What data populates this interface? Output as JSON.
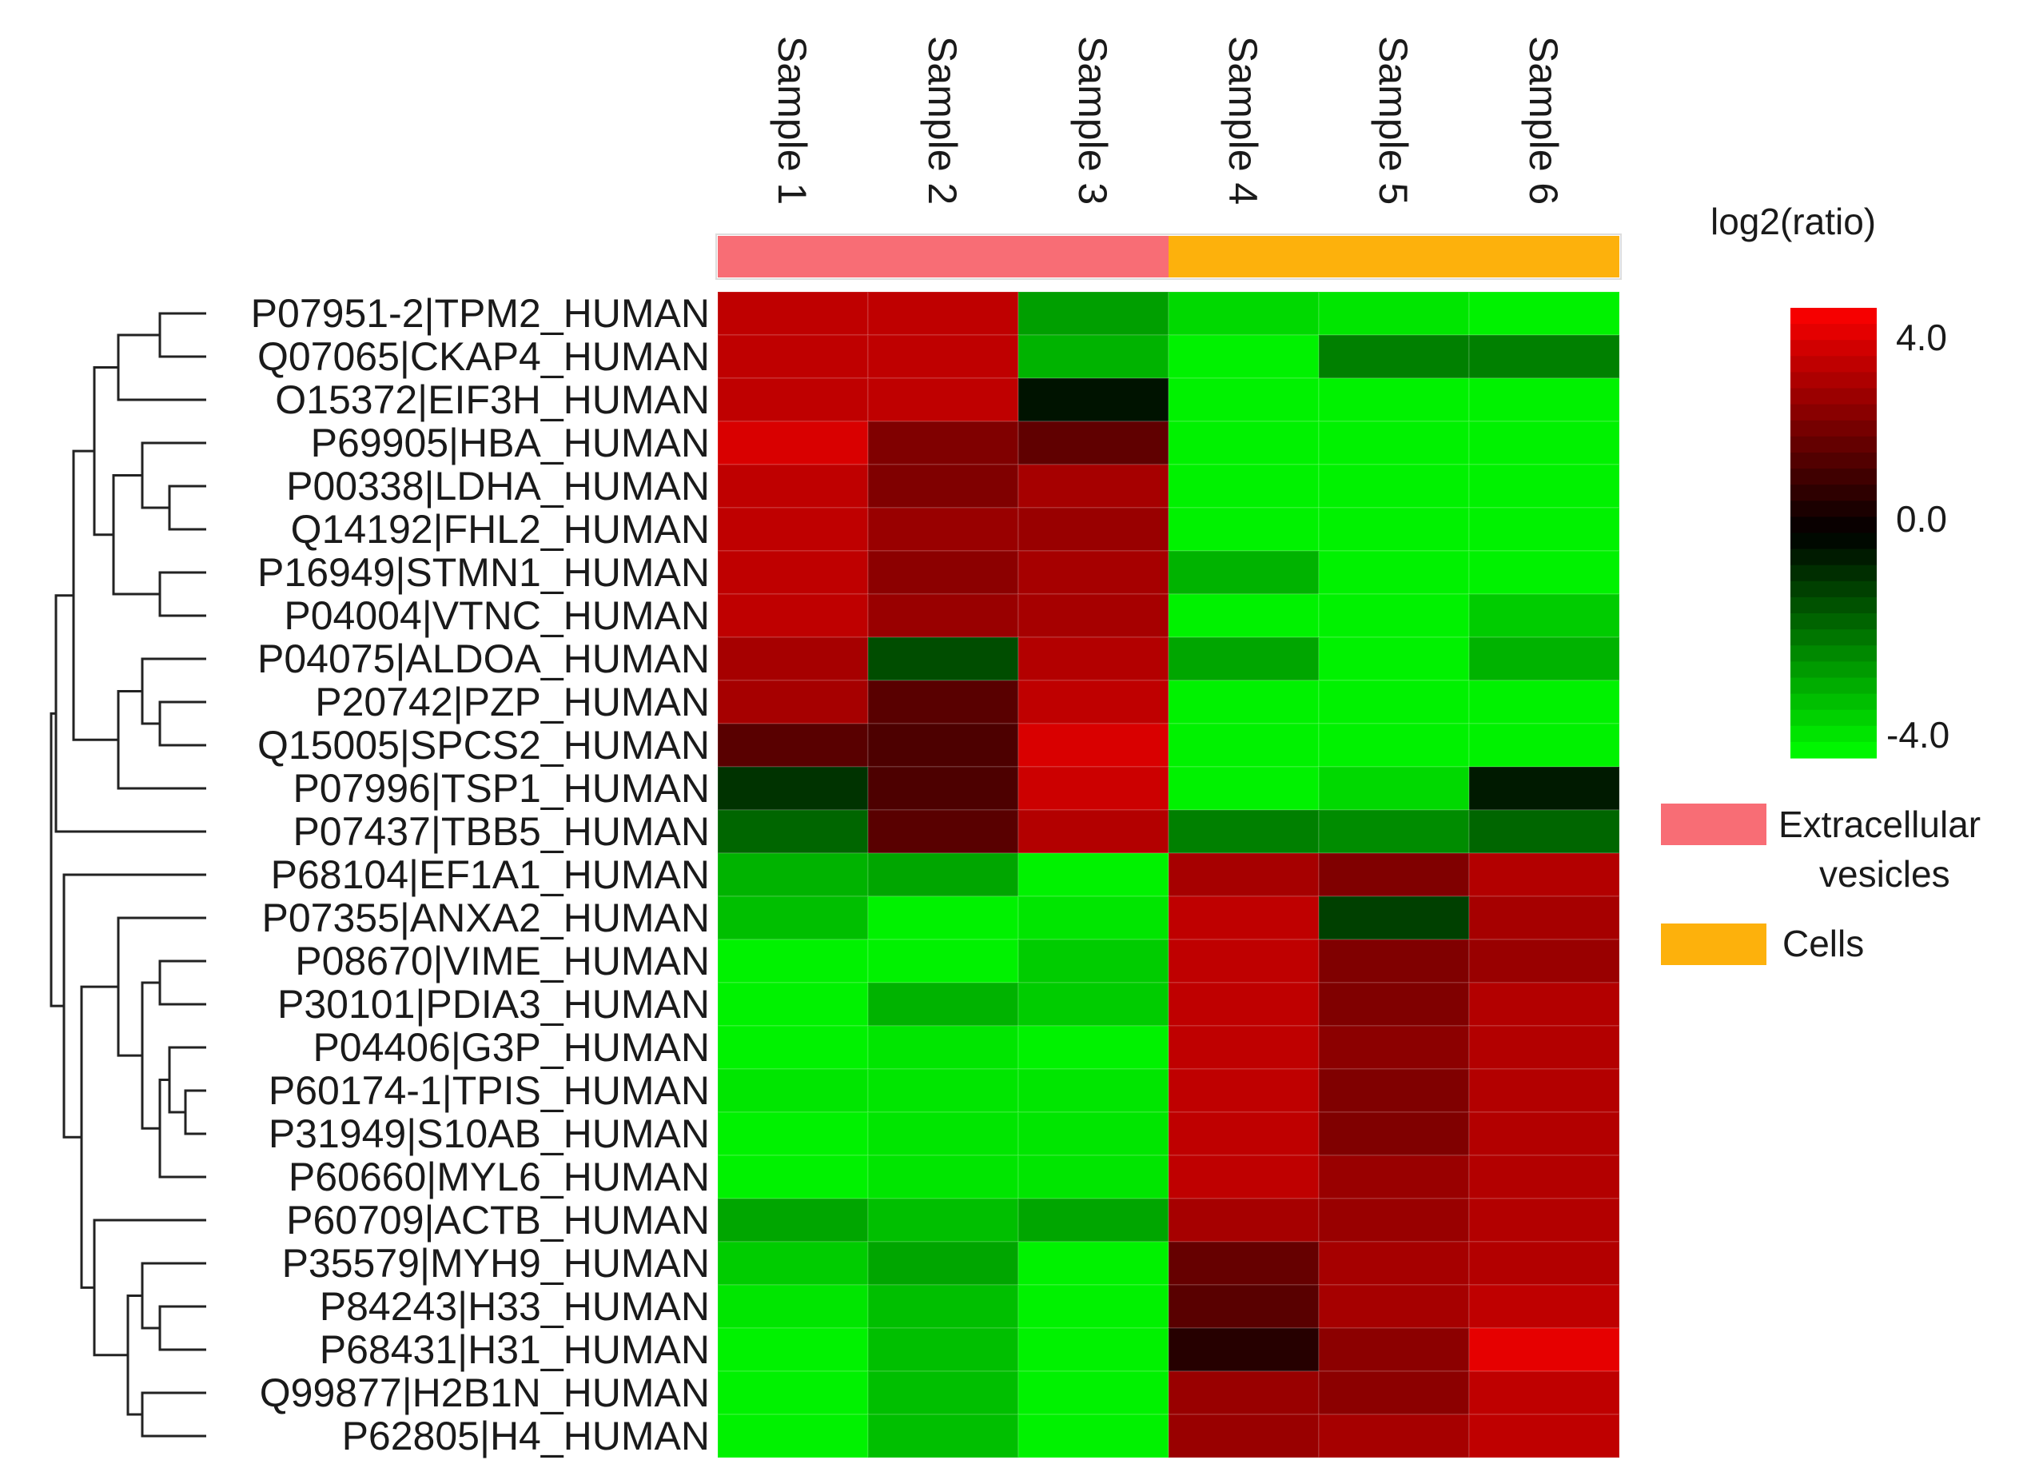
{
  "chart_data": {
    "type": "heatmap",
    "columns": [
      "Sample 1",
      "Sample 2",
      "Sample 3",
      "Sample 4",
      "Sample 5",
      "Sample 6"
    ],
    "column_groups": [
      {
        "name": "Extracellular vesicles",
        "color": "#f86d75",
        "columns": [
          "Sample 1",
          "Sample 2",
          "Sample 3"
        ]
      },
      {
        "name": "Cells",
        "color": "#fdb10c",
        "columns": [
          "Sample 4",
          "Sample 5",
          "Sample 6"
        ]
      }
    ],
    "rows": [
      "P07951-2|TPM2_HUMAN",
      "Q07065|CKAP4_HUMAN",
      "O15372|EIF3H_HUMAN",
      "P69905|HBA_HUMAN",
      "P00338|LDHA_HUMAN",
      "Q14192|FHL2_HUMAN",
      "P16949|STMN1_HUMAN",
      "P04004|VTNC_HUMAN",
      "P04075|ALDOA_HUMAN",
      "P20742|PZP_HUMAN",
      "Q15005|SPCS2_HUMAN",
      "P07996|TSP1_HUMAN",
      "P07437|TBB5_HUMAN",
      "P68104|EF1A1_HUMAN",
      "P07355|ANXA2_HUMAN",
      "P08670|VIME_HUMAN",
      "P30101|PDIA3_HUMAN",
      "P04406|G3P_HUMAN",
      "P60174-1|TPIS_HUMAN",
      "P31949|S10AB_HUMAN",
      "P60660|MYL6_HUMAN",
      "P60709|ACTB_HUMAN",
      "P35579|MYH9_HUMAN",
      "P84243|H33_HUMAN",
      "P68431|H31_HUMAN",
      "Q99877|H2B1N_HUMAN",
      "P62805|H4_HUMAN"
    ],
    "values": [
      [
        3.0,
        3.0,
        -2.5,
        -3.4,
        -3.6,
        -3.8
      ],
      [
        3.0,
        3.0,
        -2.8,
        -3.8,
        -2.0,
        -2.0
      ],
      [
        3.0,
        3.0,
        -0.3,
        -3.8,
        -3.8,
        -3.8
      ],
      [
        3.4,
        2.0,
        1.5,
        -3.8,
        -3.8,
        -3.8
      ],
      [
        3.0,
        2.0,
        2.6,
        -3.8,
        -3.8,
        -3.8
      ],
      [
        3.0,
        2.4,
        2.4,
        -3.8,
        -3.8,
        -3.8
      ],
      [
        3.0,
        2.2,
        2.6,
        -2.8,
        -3.8,
        -3.8
      ],
      [
        3.0,
        2.4,
        2.6,
        -3.8,
        -3.8,
        -3.2
      ],
      [
        2.6,
        -1.2,
        2.8,
        -2.6,
        -3.8,
        -2.8
      ],
      [
        2.6,
        1.4,
        3.0,
        -3.8,
        -3.8,
        -3.8
      ],
      [
        1.4,
        1.2,
        3.4,
        -3.8,
        -3.8,
        -3.8
      ],
      [
        -0.8,
        1.2,
        3.2,
        -3.8,
        -3.4,
        -0.4
      ],
      [
        -1.6,
        1.4,
        2.8,
        -2.0,
        -2.2,
        -1.6
      ],
      [
        -2.8,
        -2.6,
        -3.8,
        2.6,
        2.0,
        2.8
      ],
      [
        -3.0,
        -3.8,
        -3.6,
        3.0,
        -1.0,
        2.6
      ],
      [
        -3.8,
        -3.8,
        -3.2,
        3.0,
        2.0,
        2.4
      ],
      [
        -3.8,
        -2.8,
        -3.2,
        3.0,
        2.0,
        2.8
      ],
      [
        -3.8,
        -3.6,
        -3.8,
        3.0,
        2.2,
        2.8
      ],
      [
        -3.6,
        -3.6,
        -3.6,
        3.0,
        2.0,
        2.8
      ],
      [
        -3.8,
        -3.6,
        -3.6,
        3.0,
        2.0,
        2.8
      ],
      [
        -3.8,
        -3.6,
        -3.6,
        3.0,
        2.4,
        2.8
      ],
      [
        -2.6,
        -3.0,
        -2.6,
        2.6,
        2.4,
        2.8
      ],
      [
        -3.2,
        -2.6,
        -3.8,
        1.6,
        2.6,
        2.8
      ],
      [
        -3.6,
        -3.0,
        -3.8,
        1.4,
        2.6,
        3.0
      ],
      [
        -3.8,
        -3.0,
        -3.8,
        0.6,
        2.2,
        3.6
      ],
      [
        -3.8,
        -3.0,
        -3.8,
        2.4,
        2.2,
        3.0
      ],
      [
        -3.8,
        -3.0,
        -3.8,
        2.4,
        2.6,
        3.0
      ]
    ],
    "legend": {
      "title": "log2(ratio)",
      "ticks": [
        "4.0",
        "0.0",
        "-4.0"
      ],
      "max": 4.0,
      "min": -4.0,
      "placement": "right"
    },
    "colors": {
      "high": "#ff0000",
      "mid": "#000000",
      "low": "#00ff00"
    },
    "row_dendrogram": true
  }
}
